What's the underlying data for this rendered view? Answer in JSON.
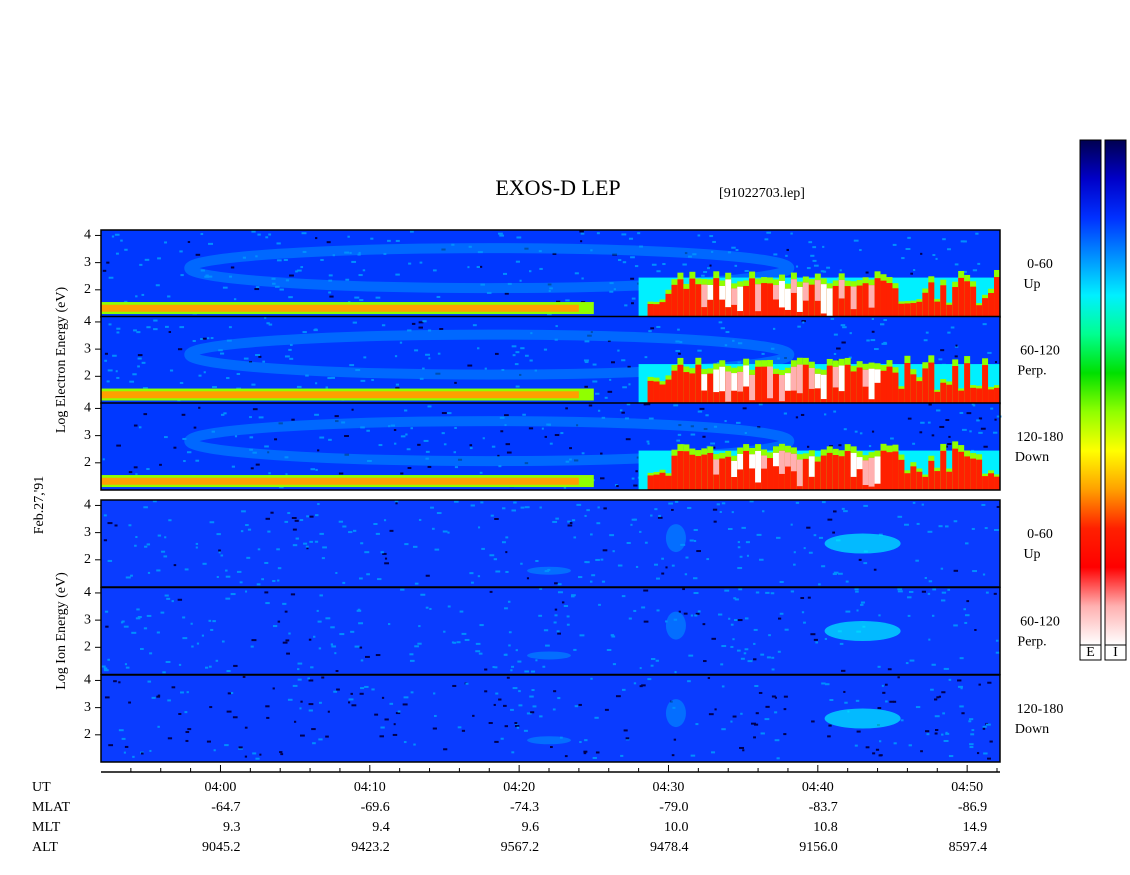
{
  "chart_data": {
    "type": "spectrogram",
    "title": "EXOS-D LEP",
    "subtitle": "[91022703.lep]",
    "date_label": "Feb.27,'91",
    "groups": [
      {
        "ylabel": "Log Electron Energy (eV)",
        "kind": "electron",
        "panels": [
          [
            "0-60",
            "Up"
          ],
          [
            "60-120",
            "Perp."
          ],
          [
            "120-180",
            "Down"
          ]
        ]
      },
      {
        "ylabel": "Log Ion Energy (eV)",
        "kind": "ion",
        "panels": [
          [
            "0-60",
            "Up"
          ],
          [
            "60-120",
            "Perp."
          ],
          [
            "120-180",
            "Down"
          ]
        ]
      }
    ],
    "ylim": [
      1,
      4.2
    ],
    "yticks": [
      2,
      3,
      4
    ],
    "xlim": [
      232,
      292.2
    ],
    "xticks": [
      {
        "value": 240,
        "label": "04:00"
      },
      {
        "value": 250,
        "label": "04:10"
      },
      {
        "value": 260,
        "label": "04:20"
      },
      {
        "value": 270,
        "label": "04:30"
      },
      {
        "value": 280,
        "label": "04:40"
      },
      {
        "value": 290,
        "label": "04:50"
      }
    ],
    "xminorticks": [
      234,
      236,
      238,
      242,
      244,
      246,
      248,
      252,
      254,
      256,
      258,
      262,
      264,
      266,
      268,
      272,
      274,
      276,
      278,
      282,
      284,
      286,
      288,
      292
    ],
    "x_label": "UT",
    "ephemeris": [
      {
        "name": "MLAT",
        "values": [
          "-64.7",
          "-69.6",
          "-74.3",
          "-79.0",
          "-83.7",
          "-86.9"
        ]
      },
      {
        "name": "MLT",
        "values": [
          "9.3",
          "9.4",
          "9.6",
          "10.0",
          "10.8",
          "14.9"
        ]
      },
      {
        "name": "ALT",
        "values": [
          "9045.2",
          "9423.2",
          "9567.2",
          "9478.4",
          "9156.0",
          "8597.4"
        ]
      }
    ],
    "colorbars": [
      "E",
      "I"
    ],
    "colormap": [
      "#000050",
      "#0000c8",
      "#0030ff",
      "#0090ff",
      "#00f0ff",
      "#00ff90",
      "#00e000",
      "#90ff00",
      "#ffff00",
      "#ffa000",
      "#ff2000",
      "#ff0000",
      "#ffb0b0",
      "#ffffff"
    ]
  }
}
